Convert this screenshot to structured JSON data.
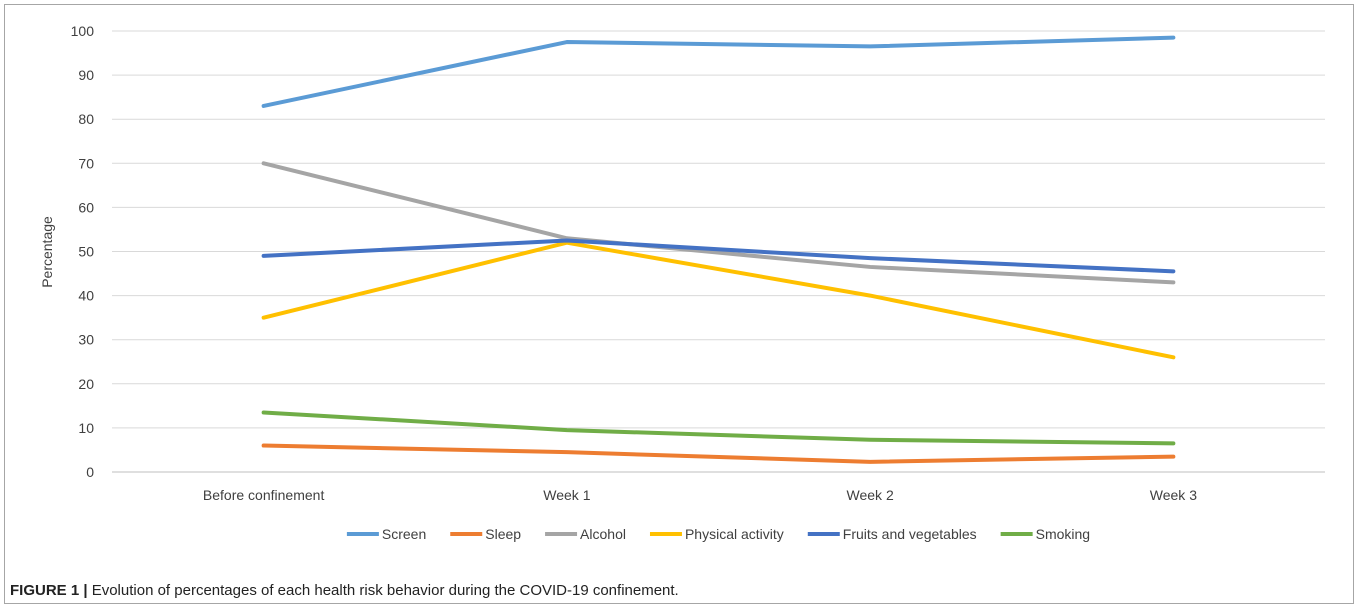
{
  "chart_data": {
    "type": "line",
    "categories": [
      "Before confinement",
      "Week 1",
      "Week 2",
      "Week 3"
    ],
    "ylabel": "Percentage",
    "ylim": [
      0,
      100
    ],
    "yticks": [
      0,
      10,
      20,
      30,
      40,
      50,
      60,
      70,
      80,
      90,
      100
    ],
    "grid": true,
    "legend_position": "bottom",
    "series": [
      {
        "name": "Screen",
        "color": "#5b9bd5",
        "values": [
          83,
          97.5,
          96.5,
          98.5
        ]
      },
      {
        "name": "Sleep",
        "color": "#ed7d31",
        "values": [
          6,
          4.5,
          2.3,
          3.5
        ]
      },
      {
        "name": "Alcohol",
        "color": "#a5a5a5",
        "values": [
          70,
          53,
          46.5,
          43
        ]
      },
      {
        "name": "Physical activity",
        "color": "#ffc000",
        "values": [
          35,
          52,
          40,
          26
        ]
      },
      {
        "name": "Fruits and vegetables",
        "color": "#4472c4",
        "values": [
          49,
          52.5,
          48.5,
          45.5
        ]
      },
      {
        "name": "Smoking",
        "color": "#70ad47",
        "values": [
          13.5,
          9.5,
          7.3,
          6.5
        ]
      }
    ]
  },
  "caption": {
    "label": "FIGURE 1 |",
    "text": " Evolution of percentages of each health risk behavior during the COVID-19 confinement."
  }
}
